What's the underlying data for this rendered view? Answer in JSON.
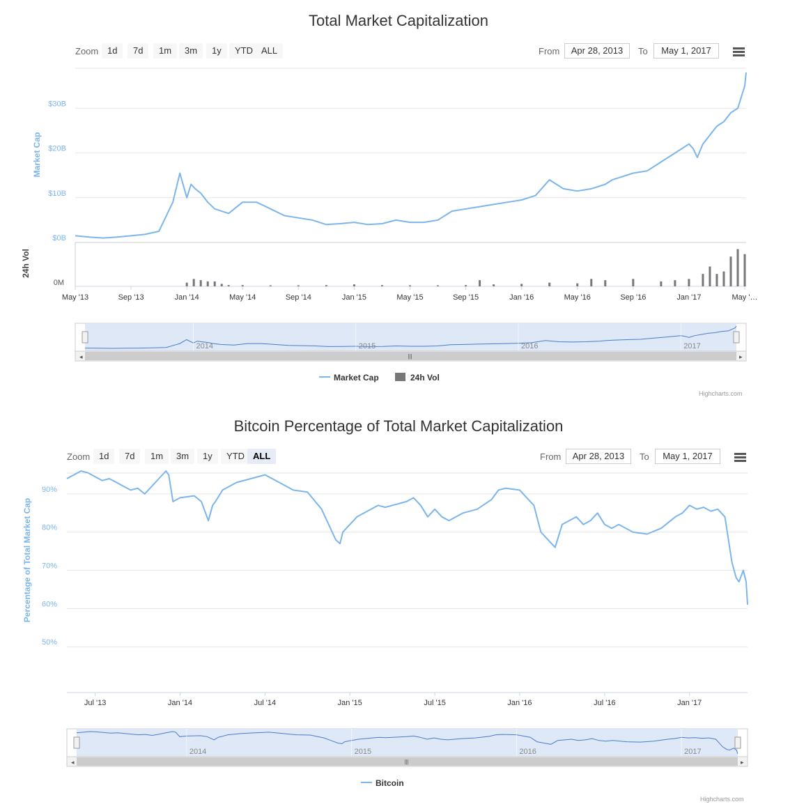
{
  "credit": "Highcharts.com",
  "colors": {
    "line": "#7cb5ec",
    "volume": "#777777",
    "navigator_fill": "#dae6f5",
    "grid": "#e6e6e6",
    "active_btn": "#e6ebf5"
  },
  "menu_icon": "hamburger-menu-icon",
  "charts": [
    {
      "title": "Total Market Capitalization",
      "zoom": {
        "label": "Zoom",
        "buttons": [
          "1d",
          "7d",
          "1m",
          "3m",
          "1y",
          "YTD",
          "ALL"
        ],
        "active": ""
      },
      "range": {
        "from_label": "From",
        "from": "Apr 28, 2013",
        "to_label": "To",
        "to": "May 1, 2017"
      },
      "legend": [
        "Market Cap",
        "24h Vol"
      ]
    },
    {
      "title": "Bitcoin Percentage of Total Market Capitalization",
      "zoom": {
        "label": "Zoom",
        "buttons": [
          "1d",
          "7d",
          "1m",
          "3m",
          "1y",
          "YTD",
          "ALL"
        ],
        "active": "ALL"
      },
      "range": {
        "from_label": "From",
        "from": "Apr 28, 2013",
        "to_label": "To",
        "to": "May 1, 2017"
      },
      "legend": [
        "Bitcoin"
      ]
    }
  ],
  "chart_data": [
    {
      "type": "line",
      "title": "Total Market Capitalization",
      "ylabel": "Market Cap",
      "ylabel2": "24h Vol",
      "xlabel": "",
      "ylim": [
        0,
        38
      ],
      "y_unit": "billion USD",
      "yticks": [
        "$0B",
        "$10B",
        "$20B",
        "$30B"
      ],
      "ytick_values": [
        0,
        10,
        20,
        30
      ],
      "vol_tick": "0M",
      "xticks": [
        "May '13",
        "Sep '13",
        "Jan '14",
        "May '14",
        "Sep '14",
        "Jan '15",
        "May '15",
        "Sep '15",
        "Jan '16",
        "May '16",
        "Sep '16",
        "Jan '17",
        "May '…"
      ],
      "xtick_months": [
        0,
        4,
        8,
        12,
        16,
        20,
        24,
        28,
        32,
        36,
        40,
        44,
        48
      ],
      "x_range_months": [
        0,
        48.1
      ],
      "navigator_labels": [
        "2014",
        "2015",
        "2016",
        "2017"
      ],
      "navigator_months": [
        8,
        20,
        32,
        44
      ],
      "series": [
        {
          "name": "Market Cap",
          "x": [
            0,
            1,
            2,
            3,
            4,
            5,
            6,
            7,
            7.5,
            8,
            8.3,
            8.6,
            9,
            9.5,
            10,
            11,
            12,
            13,
            14,
            15,
            16,
            17,
            18,
            19,
            20,
            21,
            22,
            23,
            24,
            25,
            26,
            27,
            28,
            29,
            30,
            31,
            32,
            33,
            34,
            35,
            36,
            37,
            38,
            38.5,
            39,
            40,
            41,
            42,
            43,
            44,
            44.3,
            44.6,
            45,
            45.5,
            46,
            46.5,
            47,
            47.5,
            48,
            48.1
          ],
          "values": [
            1.5,
            1.2,
            1,
            1.2,
            1.5,
            1.8,
            2.5,
            9,
            15.5,
            10,
            13,
            12,
            11,
            9,
            7.5,
            6.5,
            9,
            9,
            7.5,
            6,
            5.5,
            5,
            4,
            4.2,
            4.5,
            4,
            4.2,
            5,
            4.5,
            4.5,
            5,
            7,
            7.5,
            8,
            8.5,
            9,
            9.5,
            10.5,
            14,
            12,
            11.5,
            12,
            13,
            14,
            14.5,
            15.5,
            16,
            18,
            20,
            22,
            21,
            19,
            22,
            24,
            26,
            27,
            29,
            30,
            35,
            38
          ]
        },
        {
          "name": "24h Vol",
          "x": [
            8,
            8.5,
            9,
            9.5,
            10,
            10.5,
            11,
            12,
            14,
            16,
            18,
            20,
            22,
            24,
            26,
            28,
            29,
            30,
            32,
            34,
            36,
            37,
            38,
            40,
            42,
            43,
            44,
            45,
            45.5,
            46,
            46.5,
            47,
            47.5,
            48
          ],
          "values": [
            0.15,
            0.3,
            0.25,
            0.2,
            0.2,
            0.1,
            0.05,
            0.05,
            0.04,
            0.04,
            0.05,
            0.08,
            0.05,
            0.04,
            0.04,
            0.05,
            0.25,
            0.08,
            0.1,
            0.15,
            0.12,
            0.3,
            0.25,
            0.3,
            0.2,
            0.25,
            0.3,
            0.5,
            0.8,
            0.5,
            0.6,
            1.2,
            1.5,
            1.3
          ]
        }
      ]
    },
    {
      "type": "line",
      "title": "Bitcoin Percentage of Total Market Capitalization",
      "ylabel": "Percentage of Total Market Cap",
      "xlabel": "",
      "ylim": [
        38,
        96
      ],
      "y_unit": "%",
      "yticks": [
        "50%",
        "60%",
        "70%",
        "80%",
        "90%"
      ],
      "ytick_values": [
        50,
        60,
        70,
        80,
        90
      ],
      "xticks": [
        "Jul '13",
        "Jan '14",
        "Jul '14",
        "Jan '15",
        "Jul '15",
        "Jan '16",
        "Jul '16",
        "Jan '17"
      ],
      "xtick_months": [
        2,
        8,
        14,
        20,
        26,
        32,
        38,
        44
      ],
      "x_range_months": [
        0,
        48.1
      ],
      "navigator_labels": [
        "2014",
        "2015",
        "2016",
        "2017"
      ],
      "navigator_months": [
        8,
        20,
        32,
        44
      ],
      "series": [
        {
          "name": "Bitcoin",
          "x": [
            0,
            0.5,
            1,
            1.5,
            2,
            2.5,
            3,
            3.5,
            4,
            4.5,
            5,
            5.5,
            6,
            6.5,
            7,
            7.2,
            7.5,
            8,
            9,
            9.5,
            10,
            10.3,
            10.5,
            11,
            12,
            13,
            14,
            15,
            15.5,
            16,
            17,
            18,
            18.5,
            19,
            19.3,
            19.5,
            20,
            20.5,
            21,
            21.5,
            22,
            22.5,
            23,
            24,
            24.5,
            25,
            25.5,
            26,
            26.5,
            27,
            28,
            29,
            30,
            30.5,
            31,
            32,
            32.5,
            33,
            33.5,
            34,
            34.5,
            35,
            35.5,
            36,
            36.5,
            37,
            37.5,
            38,
            38.5,
            39,
            40,
            41,
            42,
            43,
            43.5,
            44,
            44.5,
            45,
            45.5,
            46,
            46.5,
            47,
            47.3,
            47.5,
            47.8,
            48,
            48.1
          ],
          "values": [
            94,
            95,
            96,
            95.5,
            94.5,
            93.5,
            94,
            93,
            92,
            91,
            91.5,
            90,
            92,
            94,
            96,
            95,
            88,
            89,
            89.5,
            88,
            83,
            87,
            88,
            91,
            93,
            94,
            95,
            93,
            92,
            91,
            90.5,
            86,
            82,
            78,
            77,
            80,
            82,
            84,
            85,
            86,
            87,
            86.5,
            87,
            88,
            89,
            87,
            84,
            86,
            84,
            83,
            85,
            86,
            88.5,
            91,
            91.5,
            91,
            89,
            87,
            80,
            78,
            76,
            82,
            83,
            84,
            82,
            83,
            85,
            82,
            81,
            82,
            80,
            79.5,
            81,
            84,
            85,
            87,
            86,
            86.5,
            85.5,
            86,
            84,
            72,
            68,
            67,
            70,
            67,
            61
          ]
        }
      ]
    }
  ]
}
